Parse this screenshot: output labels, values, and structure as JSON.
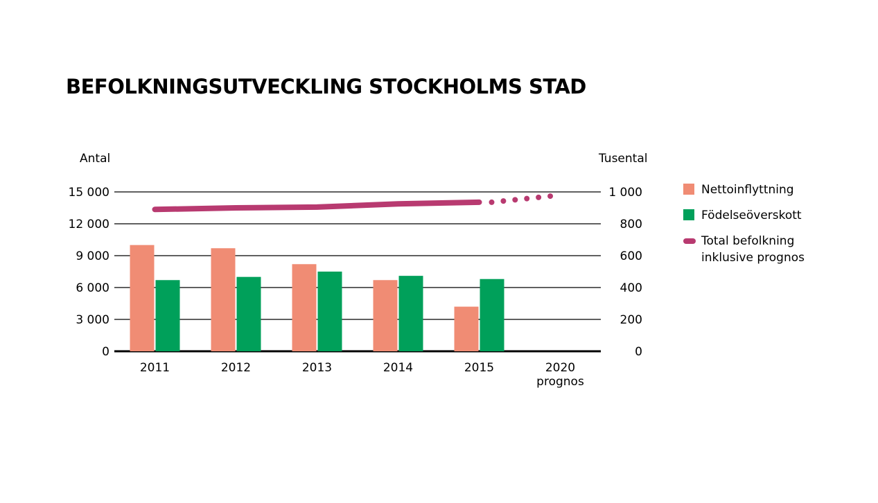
{
  "title": "BEFOLKNINGSUTVECKLING STOCKHOLMS STAD",
  "colors": {
    "nettoinflyttning": "#f08c74",
    "fodelseoverskott": "#00a05a",
    "total": "#b83a70",
    "grid": "#000000"
  },
  "legend": {
    "nettoinflyttning": "Nettoinflyttning",
    "fodelseoverskott": "Födelseöverskott",
    "total": "Total befolkning\ninklusive prognos"
  },
  "chart_data": {
    "type": "bar",
    "title": "BEFOLKNINGSUTVECKLING STOCKHOLMS STAD",
    "ylabel": "Antal",
    "y2label": "Tusental",
    "ylim": [
      0,
      15000
    ],
    "y2lim": [
      0,
      1000
    ],
    "yticks": [
      0,
      3000,
      6000,
      9000,
      12000,
      15000
    ],
    "ytick_labels": [
      "0",
      "3 000",
      "6 000",
      "9 000",
      "12 000",
      "15 000"
    ],
    "y2ticks": [
      0,
      200,
      400,
      600,
      800,
      1000
    ],
    "y2tick_labels": [
      "0",
      "200",
      "400",
      "600",
      "800",
      "1 000"
    ],
    "categories": [
      "2011",
      "2012",
      "2013",
      "2014",
      "2015",
      "2020"
    ],
    "category_sublabels": [
      "",
      "",
      "",
      "",
      "",
      "prognos"
    ],
    "grid": true,
    "legend_position": "right",
    "series": [
      {
        "name": "Nettoinflyttning",
        "type": "bar",
        "axis": "left",
        "values": [
          10000,
          9700,
          8200,
          6700,
          4200,
          null
        ]
      },
      {
        "name": "Födelseöverskott",
        "type": "bar",
        "axis": "left",
        "values": [
          6700,
          7000,
          7500,
          7100,
          6800,
          null
        ]
      },
      {
        "name": "Total befolkning inklusive prognos",
        "type": "line",
        "axis": "right",
        "x": [
          2011,
          2012,
          2013,
          2014,
          2015,
          2020
        ],
        "values": [
          890,
          900,
          905,
          925,
          935,
          980
        ],
        "projection_from_index": 4
      }
    ]
  }
}
